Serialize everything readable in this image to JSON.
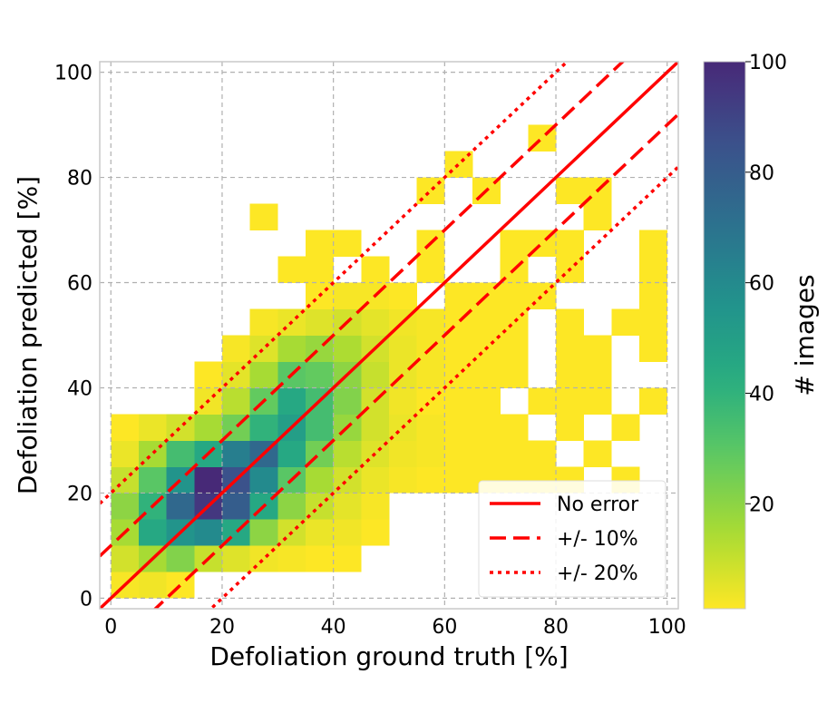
{
  "chart_data": {
    "type": "heatmap",
    "title": "",
    "xlabel": "Defoliation ground truth [%]",
    "ylabel": "Defoliation predicted [%]",
    "xlim": [
      -2,
      102
    ],
    "ylim": [
      -2,
      102
    ],
    "xticks": [
      "0",
      "20",
      "40",
      "60",
      "80",
      "100"
    ],
    "yticks": [
      "0",
      "20",
      "40",
      "60",
      "80",
      "100"
    ],
    "grid": true,
    "bin_width": 5,
    "cells_description": "each cell: [x_bin_start, y_bin_start, count]",
    "cells": [
      [
        0,
        0,
        2
      ],
      [
        5,
        0,
        3
      ],
      [
        10,
        0,
        1
      ],
      [
        0,
        5,
        8
      ],
      [
        5,
        5,
        15
      ],
      [
        10,
        5,
        22
      ],
      [
        15,
        5,
        10
      ],
      [
        20,
        5,
        6
      ],
      [
        25,
        5,
        3
      ],
      [
        30,
        5,
        2
      ],
      [
        35,
        5,
        1
      ],
      [
        40,
        5,
        1
      ],
      [
        0,
        10,
        15
      ],
      [
        5,
        10,
        45
      ],
      [
        10,
        10,
        55
      ],
      [
        15,
        10,
        60
      ],
      [
        20,
        10,
        45
      ],
      [
        25,
        10,
        20
      ],
      [
        30,
        10,
        8
      ],
      [
        35,
        10,
        4
      ],
      [
        40,
        10,
        3
      ],
      [
        45,
        10,
        1
      ],
      [
        0,
        15,
        20
      ],
      [
        5,
        15,
        40
      ],
      [
        10,
        15,
        75
      ],
      [
        15,
        15,
        95
      ],
      [
        20,
        15,
        80
      ],
      [
        25,
        15,
        45
      ],
      [
        30,
        15,
        20
      ],
      [
        35,
        15,
        10
      ],
      [
        40,
        15,
        5
      ],
      [
        45,
        15,
        2
      ],
      [
        0,
        20,
        10
      ],
      [
        5,
        20,
        30
      ],
      [
        10,
        20,
        55
      ],
      [
        15,
        20,
        100
      ],
      [
        20,
        20,
        85
      ],
      [
        25,
        20,
        60
      ],
      [
        30,
        20,
        30
      ],
      [
        35,
        20,
        15
      ],
      [
        40,
        20,
        8
      ],
      [
        45,
        20,
        4
      ],
      [
        50,
        20,
        2
      ],
      [
        55,
        20,
        1
      ],
      [
        60,
        20,
        1
      ],
      [
        65,
        20,
        1
      ],
      [
        70,
        20,
        1
      ],
      [
        75,
        20,
        1
      ],
      [
        80,
        20,
        1
      ],
      [
        90,
        20,
        1
      ],
      [
        0,
        25,
        4
      ],
      [
        5,
        25,
        15
      ],
      [
        10,
        25,
        35
      ],
      [
        15,
        25,
        45
      ],
      [
        20,
        25,
        65
      ],
      [
        25,
        25,
        75
      ],
      [
        30,
        25,
        45
      ],
      [
        35,
        25,
        25
      ],
      [
        40,
        25,
        12
      ],
      [
        45,
        25,
        6
      ],
      [
        50,
        25,
        3
      ],
      [
        55,
        25,
        2
      ],
      [
        60,
        25,
        1
      ],
      [
        65,
        25,
        1
      ],
      [
        70,
        25,
        1
      ],
      [
        75,
        25,
        1
      ],
      [
        85,
        25,
        1
      ],
      [
        0,
        30,
        1
      ],
      [
        5,
        30,
        4
      ],
      [
        10,
        30,
        8
      ],
      [
        15,
        30,
        15
      ],
      [
        20,
        30,
        25
      ],
      [
        25,
        30,
        40
      ],
      [
        30,
        30,
        50
      ],
      [
        35,
        30,
        35
      ],
      [
        40,
        30,
        18
      ],
      [
        45,
        30,
        8
      ],
      [
        50,
        30,
        4
      ],
      [
        55,
        30,
        2
      ],
      [
        60,
        30,
        1
      ],
      [
        65,
        30,
        1
      ],
      [
        70,
        30,
        1
      ],
      [
        80,
        30,
        1
      ],
      [
        90,
        30,
        1
      ],
      [
        15,
        35,
        3
      ],
      [
        20,
        35,
        12
      ],
      [
        25,
        35,
        28
      ],
      [
        30,
        35,
        45
      ],
      [
        35,
        35,
        35
      ],
      [
        40,
        35,
        22
      ],
      [
        45,
        35,
        8
      ],
      [
        50,
        35,
        3
      ],
      [
        55,
        35,
        1
      ],
      [
        60,
        35,
        1
      ],
      [
        65,
        35,
        1
      ],
      [
        75,
        35,
        1
      ],
      [
        80,
        35,
        1
      ],
      [
        85,
        35,
        1
      ],
      [
        95,
        35,
        1
      ],
      [
        15,
        40,
        1
      ],
      [
        20,
        40,
        5
      ],
      [
        25,
        40,
        15
      ],
      [
        30,
        40,
        30
      ],
      [
        35,
        40,
        28
      ],
      [
        40,
        40,
        20
      ],
      [
        45,
        40,
        10
      ],
      [
        50,
        40,
        4
      ],
      [
        55,
        40,
        2
      ],
      [
        60,
        40,
        1
      ],
      [
        65,
        40,
        1
      ],
      [
        70,
        40,
        1
      ],
      [
        80,
        40,
        1
      ],
      [
        85,
        40,
        1
      ],
      [
        20,
        45,
        2
      ],
      [
        25,
        45,
        6
      ],
      [
        30,
        45,
        15
      ],
      [
        35,
        45,
        18
      ],
      [
        40,
        45,
        14
      ],
      [
        45,
        45,
        8
      ],
      [
        50,
        45,
        4
      ],
      [
        55,
        45,
        2
      ],
      [
        60,
        45,
        1
      ],
      [
        65,
        45,
        1
      ],
      [
        70,
        45,
        1
      ],
      [
        80,
        45,
        1
      ],
      [
        85,
        45,
        1
      ],
      [
        95,
        45,
        1
      ],
      [
        25,
        50,
        2
      ],
      [
        30,
        50,
        4
      ],
      [
        35,
        50,
        6
      ],
      [
        40,
        50,
        8
      ],
      [
        45,
        50,
        5
      ],
      [
        50,
        50,
        3
      ],
      [
        55,
        50,
        2
      ],
      [
        60,
        50,
        1
      ],
      [
        65,
        50,
        1
      ],
      [
        70,
        50,
        1
      ],
      [
        80,
        50,
        1
      ],
      [
        90,
        50,
        1
      ],
      [
        95,
        50,
        1
      ],
      [
        35,
        55,
        1
      ],
      [
        40,
        55,
        2
      ],
      [
        45,
        55,
        2
      ],
      [
        50,
        55,
        1
      ],
      [
        60,
        55,
        1
      ],
      [
        65,
        55,
        1
      ],
      [
        70,
        55,
        1
      ],
      [
        75,
        55,
        1
      ],
      [
        95,
        55,
        1
      ],
      [
        30,
        60,
        1
      ],
      [
        35,
        60,
        1
      ],
      [
        45,
        60,
        1
      ],
      [
        55,
        60,
        1
      ],
      [
        70,
        60,
        1
      ],
      [
        80,
        60,
        1
      ],
      [
        95,
        60,
        1
      ],
      [
        35,
        65,
        1
      ],
      [
        40,
        65,
        1
      ],
      [
        55,
        65,
        1
      ],
      [
        70,
        65,
        1
      ],
      [
        75,
        65,
        1
      ],
      [
        80,
        65,
        1
      ],
      [
        95,
        65,
        1
      ],
      [
        25,
        70,
        1
      ],
      [
        85,
        70,
        1
      ],
      [
        55,
        75,
        1
      ],
      [
        65,
        75,
        1
      ],
      [
        80,
        75,
        1
      ],
      [
        85,
        75,
        1
      ],
      [
        60,
        80,
        1
      ],
      [
        75,
        85,
        1
      ]
    ],
    "lines": [
      {
        "name": "No error",
        "style": "solid",
        "offset": 0
      },
      {
        "name": "+/- 10%",
        "style": "dashed",
        "offset": 10
      },
      {
        "name": "+/- 20%",
        "style": "dotted",
        "offset": 20
      }
    ],
    "line_color": "#ff0000",
    "legend_position": "lower-right",
    "colorbar": {
      "label": "# images",
      "min": 1,
      "max": 100,
      "ticks": [
        "20",
        "40",
        "60",
        "80",
        "100"
      ],
      "colormap": "viridis_r"
    }
  }
}
